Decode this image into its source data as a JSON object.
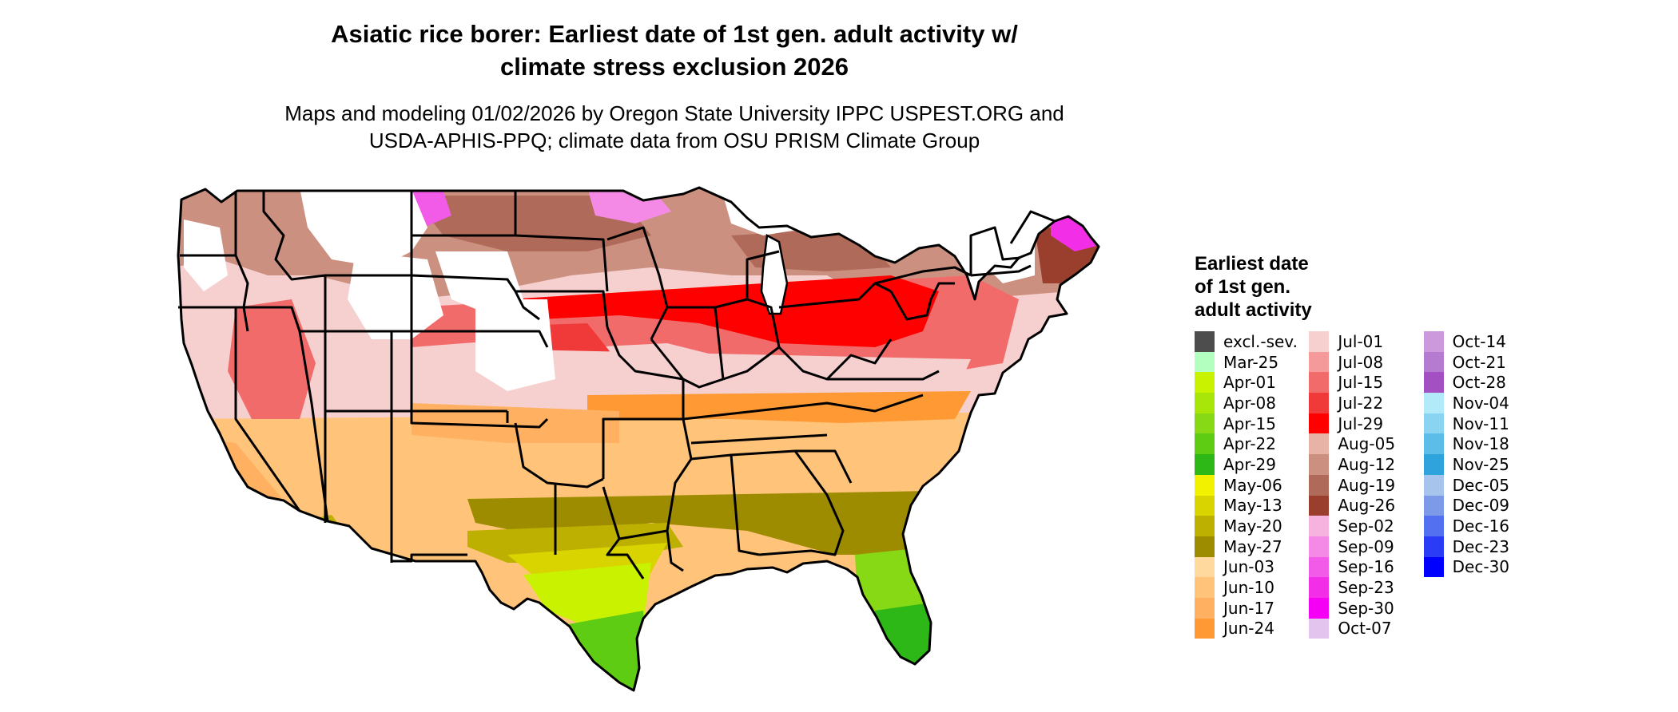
{
  "header": {
    "title_line1": "Asiatic rice borer: Earliest date of 1st gen. adult activity w/",
    "title_line2": "climate stress exclusion 2026",
    "subtitle_line1": "Maps and modeling 01/02/2026 by Oregon State University IPPC USPEST.ORG and",
    "subtitle_line2": "USDA-APHIS-PPQ; climate data from OSU PRISM Climate Group"
  },
  "legend": {
    "title_lines": [
      "Earliest date",
      "of 1st gen.",
      "adult activity"
    ],
    "columns": [
      [
        {
          "label": "excl.-sev.",
          "color": "#4d4d4d"
        },
        {
          "label": "Mar-25",
          "color": "#b3ffbf"
        },
        {
          "label": "Apr-01",
          "color": "#c9f200"
        },
        {
          "label": "Apr-08",
          "color": "#a8e60a"
        },
        {
          "label": "Apr-15",
          "color": "#86d914"
        },
        {
          "label": "Apr-22",
          "color": "#5fcc14"
        },
        {
          "label": "Apr-29",
          "color": "#2db817"
        },
        {
          "label": "May-06",
          "color": "#f2f200"
        },
        {
          "label": "May-13",
          "color": "#d9d400"
        },
        {
          "label": "May-20",
          "color": "#bdb000"
        },
        {
          "label": "May-27",
          "color": "#9e8c00"
        },
        {
          "label": "Jun-03",
          "color": "#ffd99e"
        },
        {
          "label": "Jun-10",
          "color": "#ffc47a"
        },
        {
          "label": "Jun-17",
          "color": "#ffb060"
        },
        {
          "label": "Jun-24",
          "color": "#ff9933"
        }
      ],
      [
        {
          "label": "Jul-01",
          "color": "#f6cfcf"
        },
        {
          "label": "Jul-08",
          "color": "#f59a9a"
        },
        {
          "label": "Jul-15",
          "color": "#f26b6b"
        },
        {
          "label": "Jul-22",
          "color": "#f03a3a"
        },
        {
          "label": "Jul-29",
          "color": "#ff0000"
        },
        {
          "label": "Aug-05",
          "color": "#e6b3a6"
        },
        {
          "label": "Aug-12",
          "color": "#cc9080"
        },
        {
          "label": "Aug-19",
          "color": "#b06a5a"
        },
        {
          "label": "Aug-26",
          "color": "#9a3f2e"
        },
        {
          "label": "Sep-02",
          "color": "#f7b3e0"
        },
        {
          "label": "Sep-09",
          "color": "#f58ae6"
        },
        {
          "label": "Sep-16",
          "color": "#f25ae8"
        },
        {
          "label": "Sep-23",
          "color": "#f22ee6"
        },
        {
          "label": "Sep-30",
          "color": "#f500f5"
        },
        {
          "label": "Oct-07",
          "color": "#e2c4ee"
        }
      ],
      [
        {
          "label": "Oct-14",
          "color": "#cc99dd"
        },
        {
          "label": "Oct-21",
          "color": "#b57bd0"
        },
        {
          "label": "Oct-28",
          "color": "#a350c3"
        },
        {
          "label": "Nov-04",
          "color": "#b3eafa"
        },
        {
          "label": "Nov-11",
          "color": "#8ad4f2"
        },
        {
          "label": "Nov-18",
          "color": "#5bbde8"
        },
        {
          "label": "Nov-25",
          "color": "#2ea3dc"
        },
        {
          "label": "Dec-05",
          "color": "#a6c4ec"
        },
        {
          "label": "Dec-09",
          "color": "#7d9ae8"
        },
        {
          "label": "Dec-16",
          "color": "#5270ef"
        },
        {
          "label": "Dec-23",
          "color": "#2a3cf5"
        },
        {
          "label": "Dec-30",
          "color": "#0000ff"
        }
      ]
    ]
  },
  "map": {
    "colors": {
      "land_default": "#f6cfcf",
      "unsuitable": "#ffffff",
      "border": "#000000"
    }
  }
}
